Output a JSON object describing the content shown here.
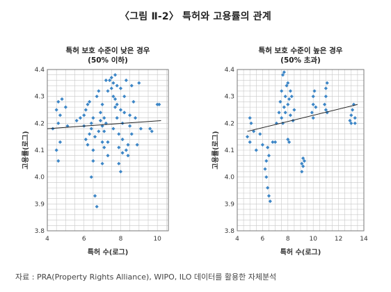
{
  "figure": {
    "title": "〈그림 Ⅱ-2〉 특허와 고용률의 관계",
    "source": "자료 : PRA(Property Rights Alliance), WIPO, ILO 데이터를 활용한 자체분석"
  },
  "colors": {
    "marker": "#3d86c6",
    "trendline": "#222222",
    "grid": "#c8c8c8",
    "border": "#777777"
  },
  "chart_data": [
    {
      "type": "scatter",
      "title": "특허 보호 수준이 낮은 경우",
      "subtitle": "(50% 이하)",
      "xlabel": "특허 수(로그)",
      "ylabel": "고용률(로그)",
      "xlim": [
        4,
        10.6
      ],
      "ylim": [
        3.8,
        4.4
      ],
      "xticks": [
        4,
        6,
        8,
        10
      ],
      "yticks": [
        3.8,
        3.9,
        4.0,
        4.1,
        4.2,
        4.3,
        4.4
      ],
      "grid": true,
      "trendline": [
        [
          4.0,
          4.18
        ],
        [
          10.2,
          4.21
        ]
      ],
      "points": [
        [
          4.3,
          4.18
        ],
        [
          4.5,
          4.25
        ],
        [
          4.6,
          4.28
        ],
        [
          4.6,
          4.2
        ],
        [
          4.7,
          4.23
        ],
        [
          4.8,
          4.29
        ],
        [
          4.5,
          4.1
        ],
        [
          4.6,
          4.06
        ],
        [
          4.7,
          4.13
        ],
        [
          5.0,
          4.26
        ],
        [
          5.1,
          4.19
        ],
        [
          5.6,
          4.21
        ],
        [
          5.8,
          4.22
        ],
        [
          6.0,
          4.19
        ],
        [
          6.0,
          4.23
        ],
        [
          6.1,
          4.25
        ],
        [
          6.2,
          4.27
        ],
        [
          6.1,
          4.14
        ],
        [
          6.2,
          4.12
        ],
        [
          6.3,
          4.16
        ],
        [
          6.4,
          4.18
        ],
        [
          6.4,
          4.2
        ],
        [
          6.5,
          4.22
        ],
        [
          6.5,
          4.1
        ],
        [
          6.5,
          4.06
        ],
        [
          6.4,
          4.0
        ],
        [
          6.6,
          4.15
        ],
        [
          6.6,
          3.93
        ],
        [
          6.7,
          3.89
        ],
        [
          6.7,
          4.3
        ],
        [
          6.8,
          4.32
        ],
        [
          6.8,
          4.17
        ],
        [
          6.9,
          4.21
        ],
        [
          6.9,
          4.24
        ],
        [
          7.0,
          4.19
        ],
        [
          7.0,
          4.27
        ],
        [
          7.0,
          4.13
        ],
        [
          7.0,
          4.05
        ],
        [
          7.1,
          4.22
        ],
        [
          7.1,
          4.17
        ],
        [
          7.1,
          4.11
        ],
        [
          7.2,
          4.2
        ],
        [
          7.3,
          4.08
        ],
        [
          7.3,
          4.32
        ],
        [
          7.4,
          4.36
        ],
        [
          7.5,
          4.37
        ],
        [
          7.5,
          4.33
        ],
        [
          7.6,
          4.35
        ],
        [
          7.6,
          4.3
        ],
        [
          7.7,
          4.26
        ],
        [
          7.7,
          4.38
        ],
        [
          7.7,
          4.29
        ],
        [
          7.8,
          4.34
        ],
        [
          7.8,
          4.27
        ],
        [
          7.8,
          4.22
        ],
        [
          7.9,
          4.16
        ],
        [
          7.9,
          4.11
        ],
        [
          7.9,
          4.05
        ],
        [
          8.0,
          4.33
        ],
        [
          8.0,
          4.25
        ],
        [
          8.0,
          4.02
        ],
        [
          8.1,
          4.2
        ],
        [
          8.1,
          4.09
        ],
        [
          8.1,
          4.14
        ],
        [
          8.2,
          4.24
        ],
        [
          8.2,
          4.3
        ],
        [
          8.3,
          4.36
        ],
        [
          8.3,
          4.1
        ],
        [
          8.4,
          4.12
        ],
        [
          8.4,
          4.08
        ],
        [
          8.5,
          4.19
        ],
        [
          8.5,
          4.23
        ],
        [
          8.6,
          4.34
        ],
        [
          8.6,
          4.16
        ],
        [
          8.7,
          4.28
        ],
        [
          8.8,
          4.22
        ],
        [
          9.1,
          4.18
        ],
        [
          9.6,
          4.18
        ],
        [
          9.7,
          4.17
        ],
        [
          10.0,
          4.27
        ],
        [
          10.1,
          4.27
        ],
        [
          9.0,
          4.35
        ],
        [
          8.9,
          4.12
        ],
        [
          7.6,
          4.18
        ],
        [
          7.2,
          4.36
        ],
        [
          6.3,
          4.28
        ],
        [
          7.3,
          4.13
        ]
      ]
    },
    {
      "type": "scatter",
      "title": "특허 보호 수준이 높은 경우",
      "subtitle": "(50% 초과)",
      "xlabel": "특허 수(로그)",
      "ylabel": "고용률(로그)",
      "xlim": [
        4,
        14
      ],
      "ylim": [
        3.8,
        4.4
      ],
      "xticks": [
        4,
        6,
        8,
        10,
        12,
        14
      ],
      "yticks": [
        3.8,
        3.9,
        4.0,
        4.1,
        4.2,
        4.3,
        4.4
      ],
      "grid": true,
      "trendline": [
        [
          4.8,
          4.17
        ],
        [
          13.5,
          4.27
        ]
      ],
      "points": [
        [
          4.8,
          4.15
        ],
        [
          5.0,
          4.22
        ],
        [
          5.1,
          4.2
        ],
        [
          5.0,
          4.13
        ],
        [
          5.3,
          4.17
        ],
        [
          5.5,
          4.1
        ],
        [
          5.8,
          4.16
        ],
        [
          6.0,
          4.12
        ],
        [
          6.4,
          4.11
        ],
        [
          6.5,
          4.08
        ],
        [
          6.2,
          4.03
        ],
        [
          6.3,
          4.0
        ],
        [
          6.4,
          3.96
        ],
        [
          6.5,
          3.93
        ],
        [
          6.6,
          3.91
        ],
        [
          6.3,
          4.06
        ],
        [
          6.8,
          4.13
        ],
        [
          7.0,
          4.13
        ],
        [
          7.1,
          4.2
        ],
        [
          7.3,
          4.24
        ],
        [
          7.4,
          4.28
        ],
        [
          7.5,
          4.32
        ],
        [
          7.6,
          4.38
        ],
        [
          7.7,
          4.39
        ],
        [
          7.5,
          4.22
        ],
        [
          7.6,
          4.2
        ],
        [
          7.7,
          4.26
        ],
        [
          7.8,
          4.3
        ],
        [
          7.9,
          4.34
        ],
        [
          8.0,
          4.35
        ],
        [
          7.8,
          4.24
        ],
        [
          8.0,
          4.27
        ],
        [
          8.1,
          4.29
        ],
        [
          8.2,
          4.32
        ],
        [
          8.3,
          4.3
        ],
        [
          8.0,
          4.14
        ],
        [
          8.1,
          4.13
        ],
        [
          8.4,
          4.21
        ],
        [
          8.5,
          4.25
        ],
        [
          8.2,
          4.23
        ],
        [
          9.1,
          4.02
        ],
        [
          9.2,
          4.04
        ],
        [
          9.3,
          4.06
        ],
        [
          9.2,
          4.07
        ],
        [
          9.1,
          4.05
        ],
        [
          9.9,
          4.24
        ],
        [
          10.0,
          4.27
        ],
        [
          10.0,
          4.3
        ],
        [
          10.1,
          4.32
        ],
        [
          10.2,
          4.26
        ],
        [
          10.0,
          4.22
        ],
        [
          10.9,
          4.27
        ],
        [
          11.0,
          4.3
        ],
        [
          11.0,
          4.33
        ],
        [
          11.1,
          4.35
        ],
        [
          11.0,
          4.25
        ],
        [
          11.1,
          4.24
        ],
        [
          12.9,
          4.21
        ],
        [
          13.0,
          4.23
        ],
        [
          13.1,
          4.25
        ],
        [
          13.2,
          4.27
        ],
        [
          13.3,
          4.2
        ],
        [
          13.0,
          4.2
        ],
        [
          13.3,
          4.22
        ]
      ]
    }
  ]
}
